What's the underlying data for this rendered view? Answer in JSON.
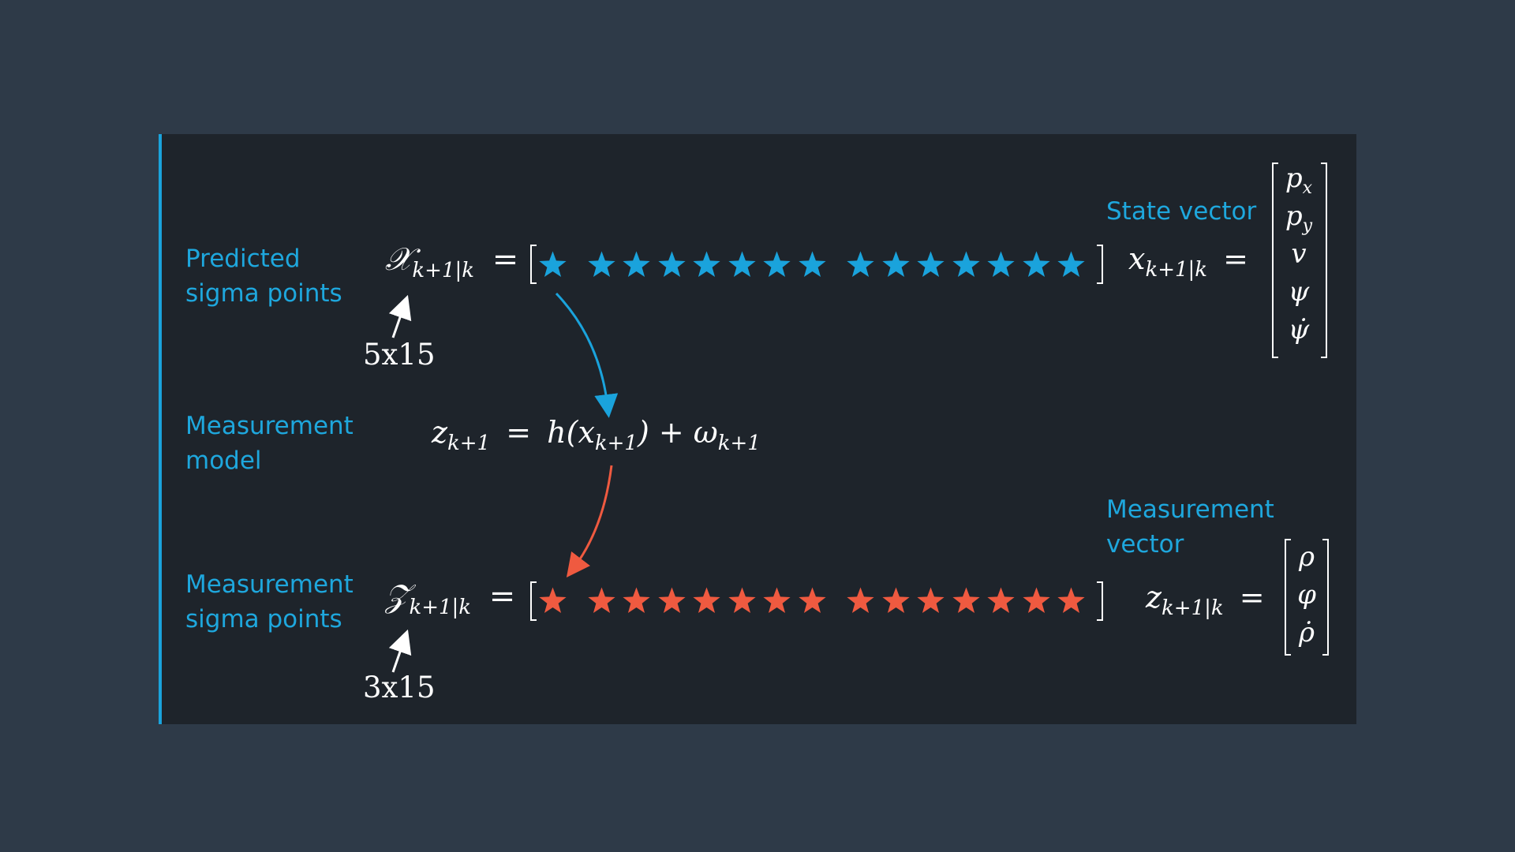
{
  "colors": {
    "background": "#2e3a48",
    "panel": "#1e242b",
    "accent_blue": "#1aa3dc",
    "accent_red": "#ef5a40",
    "text": "#ffffff"
  },
  "labels": {
    "predicted_line1": "Predicted",
    "predicted_line2": "sigma points",
    "meas_model_line1": "Measurement",
    "meas_model_line2": "model",
    "meas_sigma_line1": "Measurement",
    "meas_sigma_line2": "sigma points",
    "state_vector": "State vector",
    "meas_vector_line1": "Measurement",
    "meas_vector_line2": "vector"
  },
  "equations": {
    "predicted_symbol": "𝒳",
    "predicted_sub": "k+1|k",
    "equals": "=",
    "meas_model_lhs": "z",
    "meas_model_lhs_sub": "k+1",
    "meas_model_rhs_h": "h(x",
    "meas_model_rhs_h_sub": "k+1",
    "meas_model_rhs_plus": ") + ω",
    "meas_model_rhs_omega_sub": "k+1",
    "meas_sigma_symbol": "𝒵",
    "meas_sigma_sub": "k+1|k",
    "state_lhs": "x",
    "state_lhs_sub": "k+1|k",
    "meas_lhs": "z",
    "meas_lhs_sub": "k+1|k"
  },
  "dimensions": {
    "predicted": "5x15",
    "measurement": "3x15"
  },
  "state_vector_entries": [
    {
      "sym": "p",
      "sub": "x"
    },
    {
      "sym": "p",
      "sub": "y"
    },
    {
      "sym": "v",
      "sub": ""
    },
    {
      "sym": "ψ",
      "sub": ""
    },
    {
      "sym": "ψ̇",
      "sub": ""
    }
  ],
  "measurement_vector_entries": [
    {
      "sym": "ρ",
      "sub": ""
    },
    {
      "sym": "φ",
      "sub": ""
    },
    {
      "sym": "ρ̇",
      "sub": ""
    }
  ],
  "sigma_points": {
    "count": 15,
    "groups": [
      1,
      7,
      7
    ]
  }
}
